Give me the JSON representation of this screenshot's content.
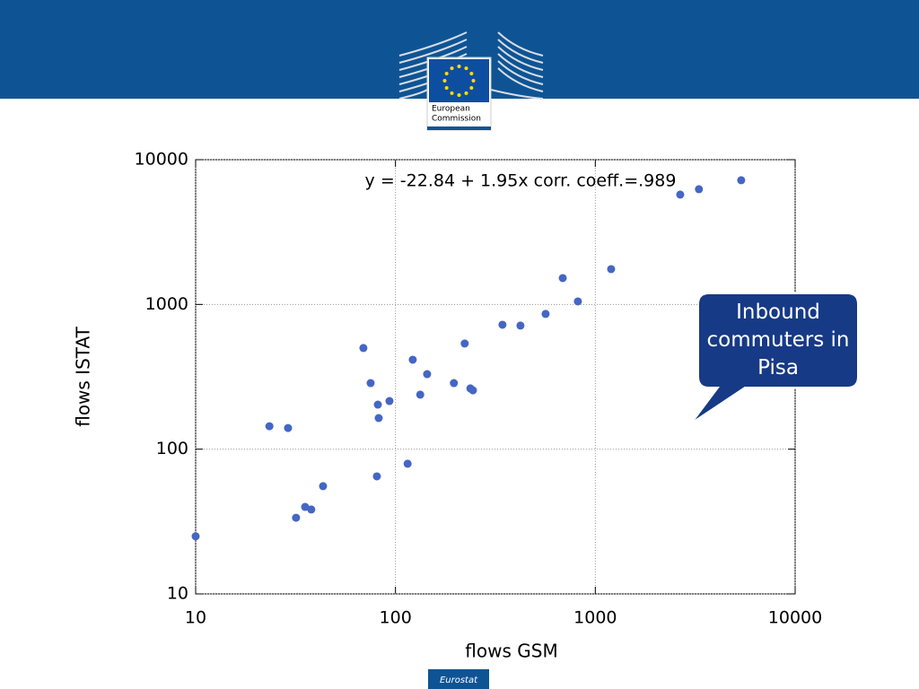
{
  "header": {
    "logo_lines": [
      "European",
      "Commission"
    ]
  },
  "chart_data": {
    "type": "scatter",
    "annotation": "y = -22.84 + 1.95x  corr. coeff.=.989",
    "x_label": "flows GSM",
    "y_label": "flows ISTAT",
    "x": [
      10,
      23.4,
      29,
      31.8,
      35.3,
      37.9,
      43.4,
      69.1,
      75.1,
      80.7,
      81.6,
      82.4,
      93.3,
      115,
      122,
      133,
      144,
      196,
      222,
      237,
      244,
      343,
      422,
      564,
      687,
      818,
      1200,
      2660,
      3300,
      5370
    ],
    "values": [
      25,
      144,
      140,
      33.6,
      39.9,
      38.3,
      55.5,
      500,
      286,
      64.9,
      203,
      164,
      215,
      79.3,
      415,
      238,
      330,
      286,
      537,
      263,
      255,
      724,
      714,
      860,
      1521,
      1049,
      1754,
      5740,
      6250,
      7210
    ],
    "color": "#4466c4",
    "xlim": [
      10,
      10000
    ],
    "ylim": [
      10,
      10000
    ],
    "xticks": [
      10,
      100,
      1000,
      10000
    ],
    "yticks": [
      10,
      100,
      1000,
      10000
    ],
    "xscale": "log",
    "yscale": "log",
    "grid": true
  },
  "callout": "Inbound commuters in Pisa",
  "footer": "Eurostat"
}
